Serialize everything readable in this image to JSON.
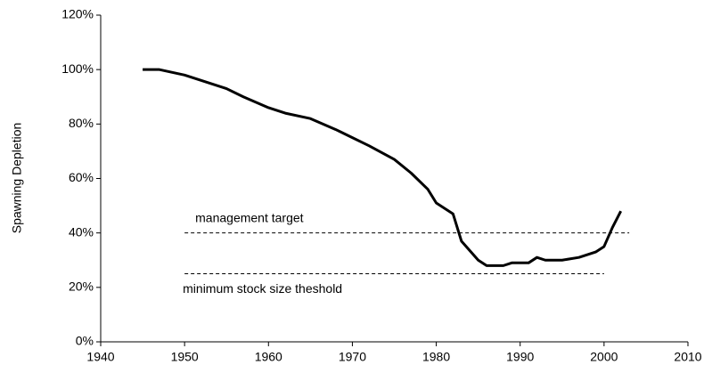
{
  "chart_data": {
    "type": "line",
    "y_label": "Spawning Depletion",
    "x": [
      1945,
      1947,
      1950,
      1955,
      1957,
      1960,
      1962,
      1965,
      1968,
      1970,
      1972,
      1975,
      1977,
      1979,
      1980,
      1982,
      1983,
      1985,
      1986,
      1988,
      1989,
      1991,
      1992,
      1993,
      1995,
      1997,
      1999,
      2000,
      2001,
      2002
    ],
    "values": [
      100,
      100,
      98,
      93,
      90,
      86,
      84,
      82,
      78,
      75,
      72,
      67,
      62,
      56,
      51,
      47,
      37,
      30,
      28,
      28,
      29,
      29,
      31,
      30,
      30,
      31,
      33,
      35,
      42,
      48
    ],
    "color": "#000000",
    "xlim": [
      1940,
      2010
    ],
    "xticks": [
      1940,
      1950,
      1960,
      1970,
      1980,
      1990,
      2000,
      2010
    ],
    "ylim": [
      0,
      120
    ],
    "yticks": [
      {
        "value": 0,
        "label": "0%"
      },
      {
        "value": 20,
        "label": "20%"
      },
      {
        "value": 40,
        "label": "40%"
      },
      {
        "value": 60,
        "label": "60%"
      },
      {
        "value": 80,
        "label": "80%"
      },
      {
        "value": 100,
        "label": "100%"
      },
      {
        "value": 120,
        "label": "120%"
      }
    ],
    "reference_lines": [
      {
        "label": "management target",
        "value": 40,
        "x": [
          1950,
          2003
        ]
      },
      {
        "label": "minimum stock size theshold",
        "value": 25,
        "x": [
          1950,
          2000
        ]
      }
    ]
  }
}
